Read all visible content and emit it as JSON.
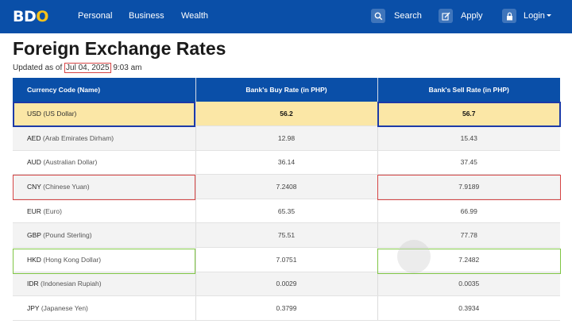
{
  "nav": {
    "logo_main": "BD",
    "logo_accent": "O",
    "links": [
      "Personal",
      "Business",
      "Wealth"
    ],
    "search_label": "Search",
    "apply_label": "Apply",
    "login_label": "Login"
  },
  "page": {
    "title": "Foreign Exchange Rates",
    "updated_prefix": "Updated as of ",
    "updated_date": "Jul 04, 2025",
    "updated_time": " 9:03 am"
  },
  "table": {
    "headers": [
      "Currency Code (Name)",
      "Bank's Buy Rate (in PHP)",
      "Bank's Sell Rate (in PHP)"
    ],
    "rows": [
      {
        "code": "USD",
        "name": "(US Dollar)",
        "buy": "56.2",
        "sell": "56.7"
      },
      {
        "code": "AED",
        "name": "(Arab Emirates Dirham)",
        "buy": "12.98",
        "sell": "15.43"
      },
      {
        "code": "AUD",
        "name": "(Australian Dollar)",
        "buy": "36.14",
        "sell": "37.45"
      },
      {
        "code": "CNY",
        "name": "(Chinese Yuan)",
        "buy": "7.2408",
        "sell": "7.9189"
      },
      {
        "code": "EUR",
        "name": "(Euro)",
        "buy": "65.35",
        "sell": "66.99"
      },
      {
        "code": "GBP",
        "name": "(Pound Sterling)",
        "buy": "75.51",
        "sell": "77.78"
      },
      {
        "code": "HKD",
        "name": "(Hong Kong Dollar)",
        "buy": "7.0751",
        "sell": "7.2482"
      },
      {
        "code": "IDR",
        "name": "(Indonesian Rupiah)",
        "buy": "0.0029",
        "sell": "0.0035"
      },
      {
        "code": "JPY",
        "name": "(Japanese Yen)",
        "buy": "0.3799",
        "sell": "0.3934"
      }
    ]
  },
  "colors": {
    "brand_blue": "#0a4fa8",
    "logo_accent": "#f6c21a",
    "highlight_row": "#fbe7a6",
    "outline_blue": "#1c3aa8",
    "outline_red": "#d64545",
    "outline_green": "#7fc544"
  },
  "icons": {
    "search": "search-icon",
    "apply": "edit-icon",
    "login": "lock-icon",
    "caret": "chevron-down-icon"
  }
}
